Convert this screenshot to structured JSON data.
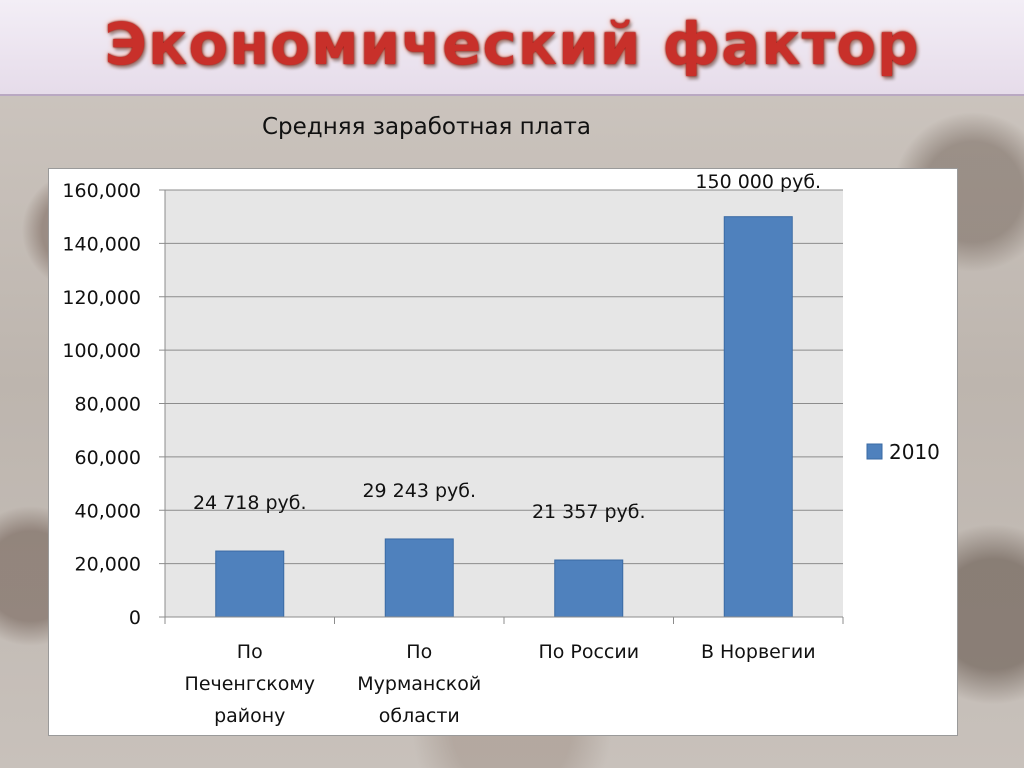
{
  "slide": {
    "title": "Экономический фактор"
  },
  "chart_data": {
    "type": "bar",
    "title": "Средняя заработная плата",
    "categories": [
      "По Печенгскому району",
      "По Мурманской области",
      "По России",
      "В Норвегии"
    ],
    "category_lines": [
      [
        "По",
        "Печенгскому",
        "району"
      ],
      [
        "По",
        "Мурманской",
        "области"
      ],
      [
        "По России"
      ],
      [
        "В Норвегии"
      ]
    ],
    "series": [
      {
        "name": "2010",
        "values": [
          24718,
          29243,
          21357,
          150000
        ],
        "color": "#4f81bd"
      }
    ],
    "data_labels": [
      "24 718 руб.",
      "29 243 руб.",
      "21 357 руб.",
      "150 000 руб."
    ],
    "ylim": [
      0,
      160000
    ],
    "yticks": [
      0,
      20000,
      40000,
      60000,
      80000,
      100000,
      120000,
      140000,
      160000
    ],
    "ytick_labels": [
      "0",
      "20,000",
      "40,000",
      "60,000",
      "80,000",
      "100,000",
      "120,000",
      "140,000",
      "160,000"
    ],
    "grid": true,
    "legend_position": "right"
  }
}
